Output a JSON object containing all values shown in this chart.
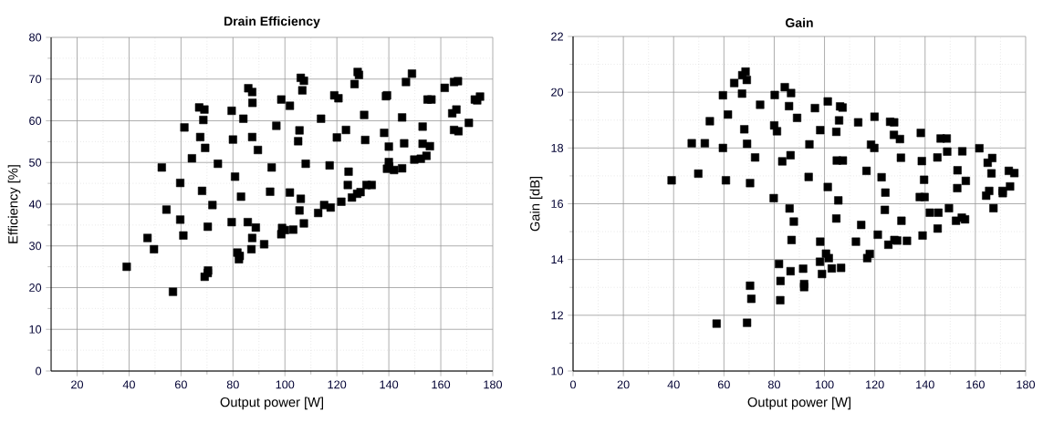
{
  "chart_data": [
    {
      "type": "scatter",
      "title": "Drain Efficiency",
      "xlabel": "Output power [W]",
      "ylabel": "Efficiency [%]",
      "color": "#000000",
      "marker": "square",
      "grid": true,
      "xlim": [
        10,
        180
      ],
      "ylim": [
        0,
        80
      ],
      "xticks": [
        20,
        40,
        60,
        80,
        100,
        120,
        140,
        160,
        180
      ],
      "yticks": [
        0,
        10,
        20,
        30,
        40,
        50,
        60,
        70,
        80
      ],
      "x": [
        39.1,
        47.1,
        49.6,
        52.6,
        54.4,
        56.9,
        59.7,
        59.7,
        60.9,
        61.3,
        64.2,
        67.0,
        67.4,
        68.1,
        68.6,
        69.0,
        69.3,
        69.1,
        70.3,
        70.3,
        70.4,
        72.1,
        74.2,
        79.5,
        79.5,
        80.0,
        80.8,
        81.7,
        82.3,
        82.6,
        83.1,
        84.0,
        85.7,
        85.9,
        87.4,
        87.5,
        87.4,
        87.4,
        87.1,
        88.8,
        89.6,
        92.0,
        94.9,
        94.3,
        96.7,
        98.6,
        98.9,
        98.6,
        100.0,
        103.2,
        101.9,
        101.9,
        105.6,
        105.1,
        106.1,
        107.3,
        106.7,
        106.1,
        105.6,
        107.3,
        108.0,
        112.8,
        113.9,
        115.1,
        117.2,
        117.6,
        119.0,
        120.6,
        120.0,
        121.7,
        123.5,
        124.2,
        124.5,
        125.8,
        126.8,
        128.0,
        128.5,
        127.8,
        129.1,
        130.5,
        130.9,
        131.4,
        133.4,
        138.2,
        138.9,
        139.3,
        140.0,
        140.0,
        139.3,
        140.1,
        142.0,
        145.1,
        145.1,
        145.9,
        146.6,
        148.9,
        149.8,
        152.3,
        153.0,
        153.0,
        154.5,
        154.9,
        156.4,
        155.8,
        161.5,
        164.4,
        165.1,
        166.0,
        166.6,
        165.1,
        166.8,
        170.8,
        173.1,
        174.0,
        175.1
      ],
      "values": [
        25.0,
        31.9,
        29.2,
        48.8,
        38.7,
        19.0,
        45.1,
        36.3,
        32.5,
        58.4,
        51.0,
        63.2,
        56.1,
        43.2,
        60.2,
        62.7,
        53.5,
        22.6,
        23.5,
        34.6,
        24.1,
        39.8,
        49.7,
        62.4,
        35.7,
        55.5,
        46.6,
        28.4,
        26.8,
        27.6,
        41.8,
        60.5,
        35.7,
        67.8,
        66.9,
        64.3,
        56.1,
        31.9,
        29.2,
        34.4,
        53.0,
        30.4,
        48.8,
        43.0,
        58.8,
        65.1,
        34.3,
        32.8,
        33.8,
        33.9,
        63.6,
        42.8,
        57.7,
        55.1,
        70.3,
        69.6,
        67.3,
        41.3,
        38.5,
        35.4,
        49.7,
        37.9,
        60.5,
        39.8,
        49.3,
        39.2,
        66.1,
        65.4,
        56.0,
        40.6,
        57.8,
        44.6,
        47.8,
        41.6,
        68.8,
        71.7,
        71.0,
        42.5,
        42.9,
        61.4,
        55.4,
        44.6,
        44.6,
        57.1,
        65.9,
        66.1,
        53.8,
        50.1,
        48.5,
        49.0,
        48.2,
        60.8,
        48.6,
        54.6,
        69.3,
        71.3,
        50.7,
        50.9,
        58.6,
        54.5,
        51.6,
        65.1,
        65.1,
        53.9,
        67.9,
        61.8,
        69.3,
        62.7,
        69.5,
        57.8,
        57.5,
        59.5,
        65.1,
        64.9,
        65.8
      ]
    },
    {
      "type": "scatter",
      "title": "Gain",
      "xlabel": "Output power [W]",
      "ylabel": "Gain [dB]",
      "color": "#000000",
      "marker": "square",
      "grid": true,
      "xlim": [
        0,
        180
      ],
      "ylim": [
        10,
        22
      ],
      "xticks": [
        0,
        20,
        40,
        60,
        80,
        100,
        120,
        140,
        160,
        180
      ],
      "yticks": [
        10,
        12,
        14,
        16,
        18,
        20,
        22
      ],
      "x": [
        39.2,
        47.2,
        49.8,
        52.4,
        54.4,
        57.1,
        59.6,
        59.6,
        60.8,
        61.6,
        64.1,
        67.2,
        67.3,
        68.1,
        68.6,
        69.1,
        69.2,
        69.2,
        70.4,
        70.4,
        70.9,
        72.4,
        74.4,
        79.8,
        80.0,
        80.2,
        81.1,
        81.9,
        82.5,
        82.4,
        83.2,
        84.2,
        85.9,
        86.1,
        86.7,
        89.1,
        86.5,
        87.8,
        86.9,
        86.5,
        91.5,
        91.9,
        91.9,
        94.0,
        93.7,
        96.2,
        98.3,
        98.3,
        98.2,
        99.0,
        100.6,
        101.7,
        101.3,
        101.3,
        102.9,
        104.7,
        104.9,
        107.3,
        105.8,
        106.2,
        107.2,
        105.5,
        104.7,
        106.6,
        113.4,
        112.5,
        114.6,
        116.7,
        117.0,
        118.0,
        118.5,
        119.9,
        119.8,
        121.2,
        122.7,
        124.2,
        124.0,
        125.4,
        126.1,
        127.7,
        127.6,
        127.8,
        128.9,
        130.0,
        130.4,
        130.6,
        132.8,
        138.3,
        138.7,
        139.6,
        137.9,
        139.8,
        139.0,
        141.9,
        145.3,
        145.0,
        144.9,
        146.2,
        148.6,
        148.8,
        149.5,
        152.3,
        152.9,
        152.8,
        154.6,
        155.9,
        154.8,
        156.2,
        161.6,
        164.9,
        166.7,
        166.4,
        164.3,
        165.5,
        167.2,
        170.8,
        170.9,
        173.3,
        175.5,
        173.8
      ],
      "values": [
        16.84,
        18.17,
        17.08,
        18.17,
        18.96,
        11.7,
        19.89,
        18.0,
        16.84,
        19.2,
        20.33,
        19.95,
        20.61,
        18.67,
        20.74,
        20.44,
        18.15,
        11.73,
        13.06,
        16.74,
        12.59,
        17.66,
        19.55,
        16.2,
        18.81,
        19.9,
        18.6,
        13.84,
        13.23,
        12.54,
        17.52,
        20.18,
        19.5,
        15.83,
        19.97,
        19.08,
        17.74,
        15.36,
        14.7,
        13.58,
        13.67,
        13.12,
        13.01,
        18.13,
        16.96,
        19.43,
        18.64,
        14.64,
        13.92,
        13.48,
        14.21,
        14.05,
        19.67,
        16.6,
        13.68,
        18.58,
        17.55,
        17.55,
        18.99,
        19.49,
        19.45,
        16.12,
        15.47,
        13.7,
        18.92,
        14.64,
        15.24,
        17.18,
        14.05,
        14.2,
        18.12,
        19.12,
        18.0,
        14.89,
        16.95,
        16.4,
        15.78,
        14.53,
        18.94,
        18.92,
        18.47,
        14.7,
        14.68,
        18.32,
        17.65,
        15.39,
        14.67,
        18.54,
        17.53,
        16.86,
        16.24,
        16.24,
        14.86,
        15.68,
        15.68,
        15.11,
        17.66,
        18.34,
        18.34,
        17.87,
        15.84,
        15.39,
        17.2,
        16.56,
        15.5,
        15.44,
        17.88,
        16.82,
        17.99,
        17.47,
        17.64,
        17.09,
        16.29,
        16.46,
        15.84,
        16.46,
        16.38,
        17.18,
        17.1,
        16.62
      ]
    }
  ]
}
